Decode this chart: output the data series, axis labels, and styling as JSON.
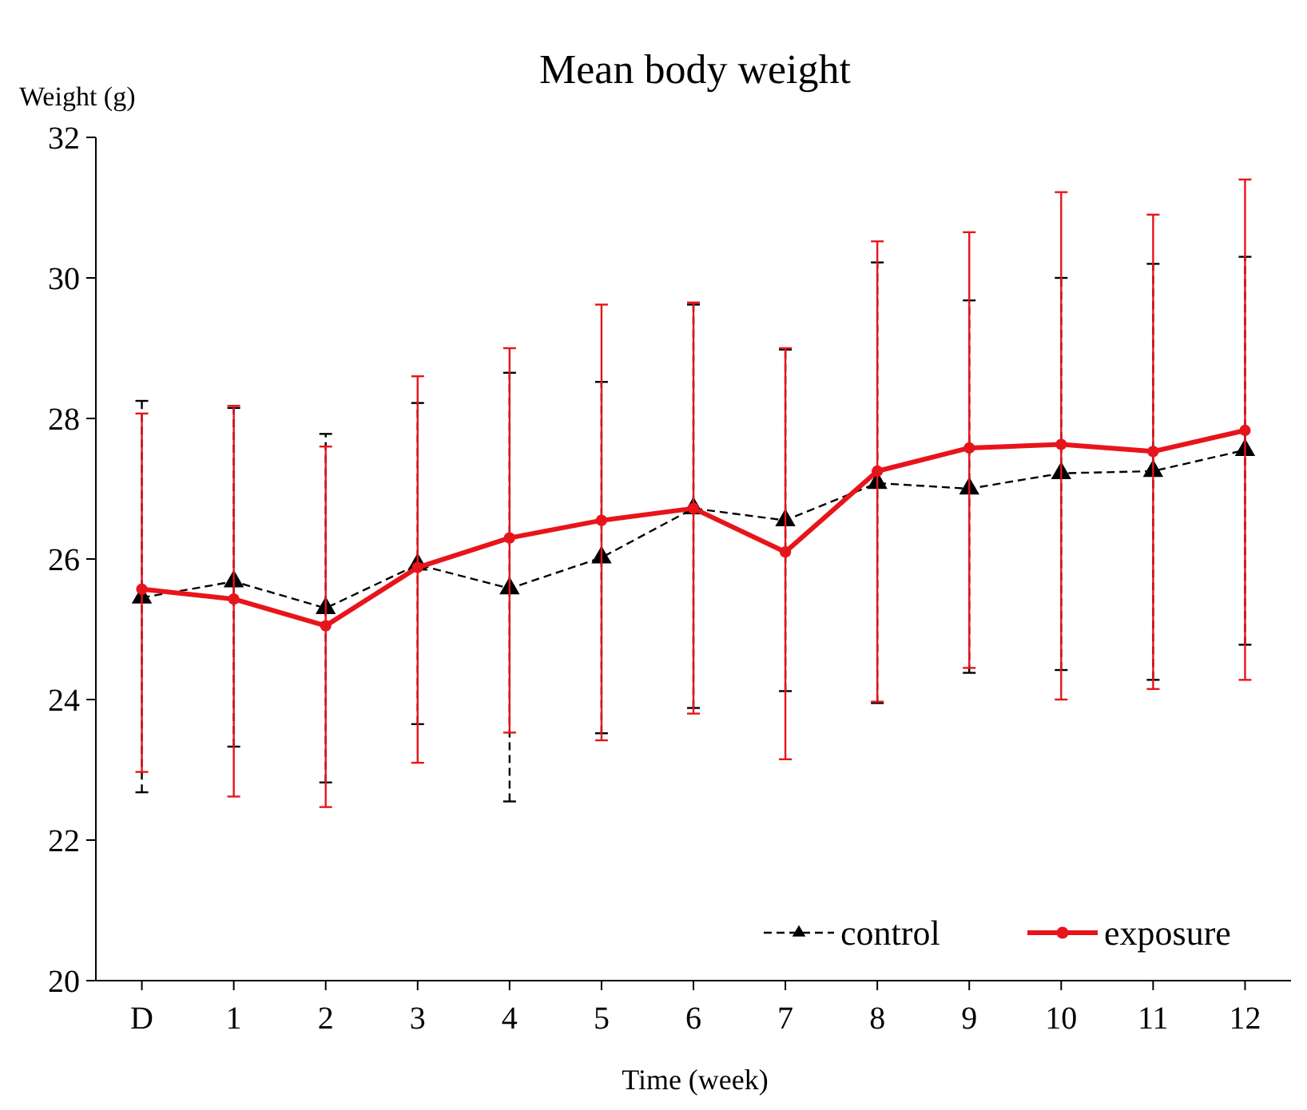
{
  "chart_data": {
    "type": "line",
    "title": "Mean body weight",
    "xlabel": "Time (week)",
    "ylabel": "Weight (g)",
    "categories": [
      "D",
      "1",
      "2",
      "3",
      "4",
      "5",
      "6",
      "7",
      "8",
      "9",
      "10",
      "11",
      "12"
    ],
    "ylim": [
      20,
      32
    ],
    "yticks": [
      20,
      22,
      24,
      26,
      28,
      30,
      32
    ],
    "grid": false,
    "legend": "bottom right",
    "series": [
      {
        "name": "control",
        "color": "#000000",
        "marker": "triangle",
        "line_style": "dashed",
        "values": [
          25.45,
          25.68,
          25.3,
          25.92,
          25.58,
          26.02,
          26.72,
          26.55,
          27.08,
          27.0,
          27.22,
          27.25,
          27.55
        ],
        "errors": [
          [
            22.68,
            28.25
          ],
          [
            23.33,
            28.15
          ],
          [
            22.82,
            27.78
          ],
          [
            23.65,
            28.22
          ],
          [
            22.55,
            28.65
          ],
          [
            23.52,
            28.52
          ],
          [
            23.88,
            29.62
          ],
          [
            24.12,
            28.98
          ],
          [
            23.95,
            30.22
          ],
          [
            24.38,
            29.68
          ],
          [
            24.42,
            30.0
          ],
          [
            24.28,
            30.2
          ],
          [
            24.78,
            30.3
          ]
        ]
      },
      {
        "name": "exposure",
        "color": "#e8141b",
        "marker": "circle",
        "line_style": "solid",
        "values": [
          25.57,
          25.43,
          25.05,
          25.88,
          26.3,
          26.55,
          26.72,
          26.1,
          27.25,
          27.58,
          27.63,
          27.53,
          27.83
        ],
        "errors": [
          [
            22.97,
            28.07
          ],
          [
            22.62,
            28.18
          ],
          [
            22.47,
            27.6
          ],
          [
            23.1,
            28.6
          ],
          [
            23.53,
            29.0
          ],
          [
            23.42,
            29.62
          ],
          [
            23.8,
            29.65
          ],
          [
            23.15,
            29.0
          ],
          [
            23.97,
            30.52
          ],
          [
            24.45,
            30.65
          ],
          [
            24.0,
            31.22
          ],
          [
            24.15,
            30.9
          ],
          [
            24.28,
            31.4
          ]
        ]
      }
    ]
  }
}
